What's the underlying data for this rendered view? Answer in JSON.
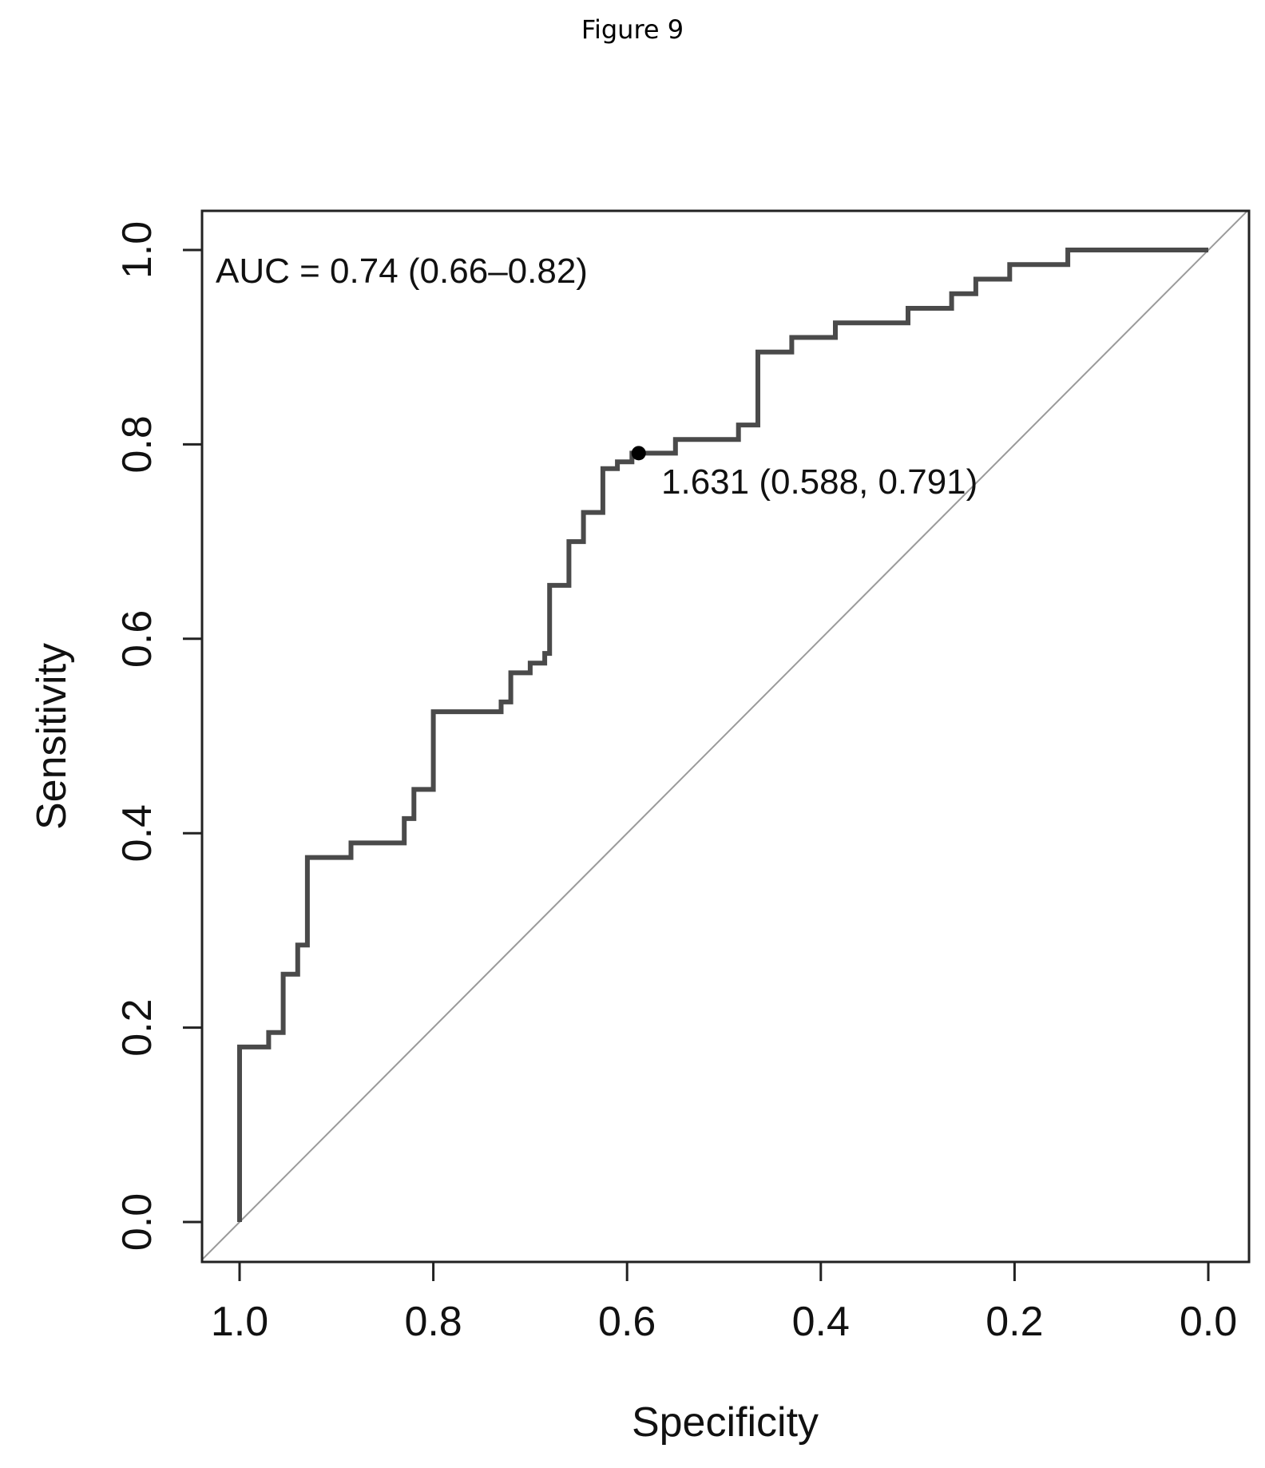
{
  "figure_label": "Figure 9",
  "chart_data": {
    "type": "line",
    "title": "",
    "xlabel": "Specificity",
    "ylabel": "Sensitivity",
    "xlim": [
      1.0,
      0.0
    ],
    "ylim": [
      0.0,
      1.0
    ],
    "x_reversed": true,
    "x_ticks": [
      "1.0",
      "0.8",
      "0.6",
      "0.4",
      "0.2",
      "0.0"
    ],
    "y_ticks": [
      "0.0",
      "0.2",
      "0.4",
      "0.6",
      "0.8",
      "1.0"
    ],
    "grid": false,
    "annotations": {
      "auc": "AUC = 0.74 (0.66–0.82)",
      "threshold_label": "1.631 (0.588, 0.791)"
    },
    "threshold_point": {
      "specificity": 0.588,
      "sensitivity": 0.791
    },
    "series": [
      {
        "type": "step",
        "specificity": [
          1.0,
          1.0,
          0.97,
          0.97,
          0.955,
          0.955,
          0.94,
          0.94,
          0.93,
          0.93,
          0.885,
          0.885,
          0.83,
          0.83,
          0.82,
          0.82,
          0.8,
          0.8,
          0.73,
          0.73,
          0.72,
          0.72,
          0.7,
          0.7,
          0.685,
          0.685,
          0.68,
          0.68,
          0.66,
          0.66,
          0.645,
          0.645,
          0.625,
          0.625,
          0.61,
          0.61,
          0.595,
          0.595,
          0.588,
          0.588,
          0.55,
          0.55,
          0.485,
          0.485,
          0.465,
          0.465,
          0.43,
          0.43,
          0.385,
          0.385,
          0.31,
          0.31,
          0.265,
          0.265,
          0.24,
          0.24,
          0.205,
          0.205,
          0.145,
          0.145,
          0.0
        ],
        "sensitivity": [
          0.0,
          0.18,
          0.18,
          0.195,
          0.195,
          0.255,
          0.255,
          0.285,
          0.285,
          0.375,
          0.375,
          0.39,
          0.39,
          0.415,
          0.415,
          0.445,
          0.445,
          0.525,
          0.525,
          0.535,
          0.535,
          0.565,
          0.565,
          0.575,
          0.575,
          0.585,
          0.585,
          0.655,
          0.655,
          0.7,
          0.7,
          0.73,
          0.73,
          0.775,
          0.775,
          0.782,
          0.782,
          0.791,
          0.791,
          0.791,
          0.791,
          0.805,
          0.805,
          0.82,
          0.82,
          0.895,
          0.895,
          0.91,
          0.91,
          0.925,
          0.925,
          0.94,
          0.94,
          0.955,
          0.955,
          0.97,
          0.97,
          0.985,
          0.985,
          1.0,
          1.0
        ]
      },
      {
        "type": "reference",
        "specificity": [
          1.04,
          0.0
        ],
        "sensitivity": [
          -0.04,
          1.0
        ]
      }
    ]
  }
}
